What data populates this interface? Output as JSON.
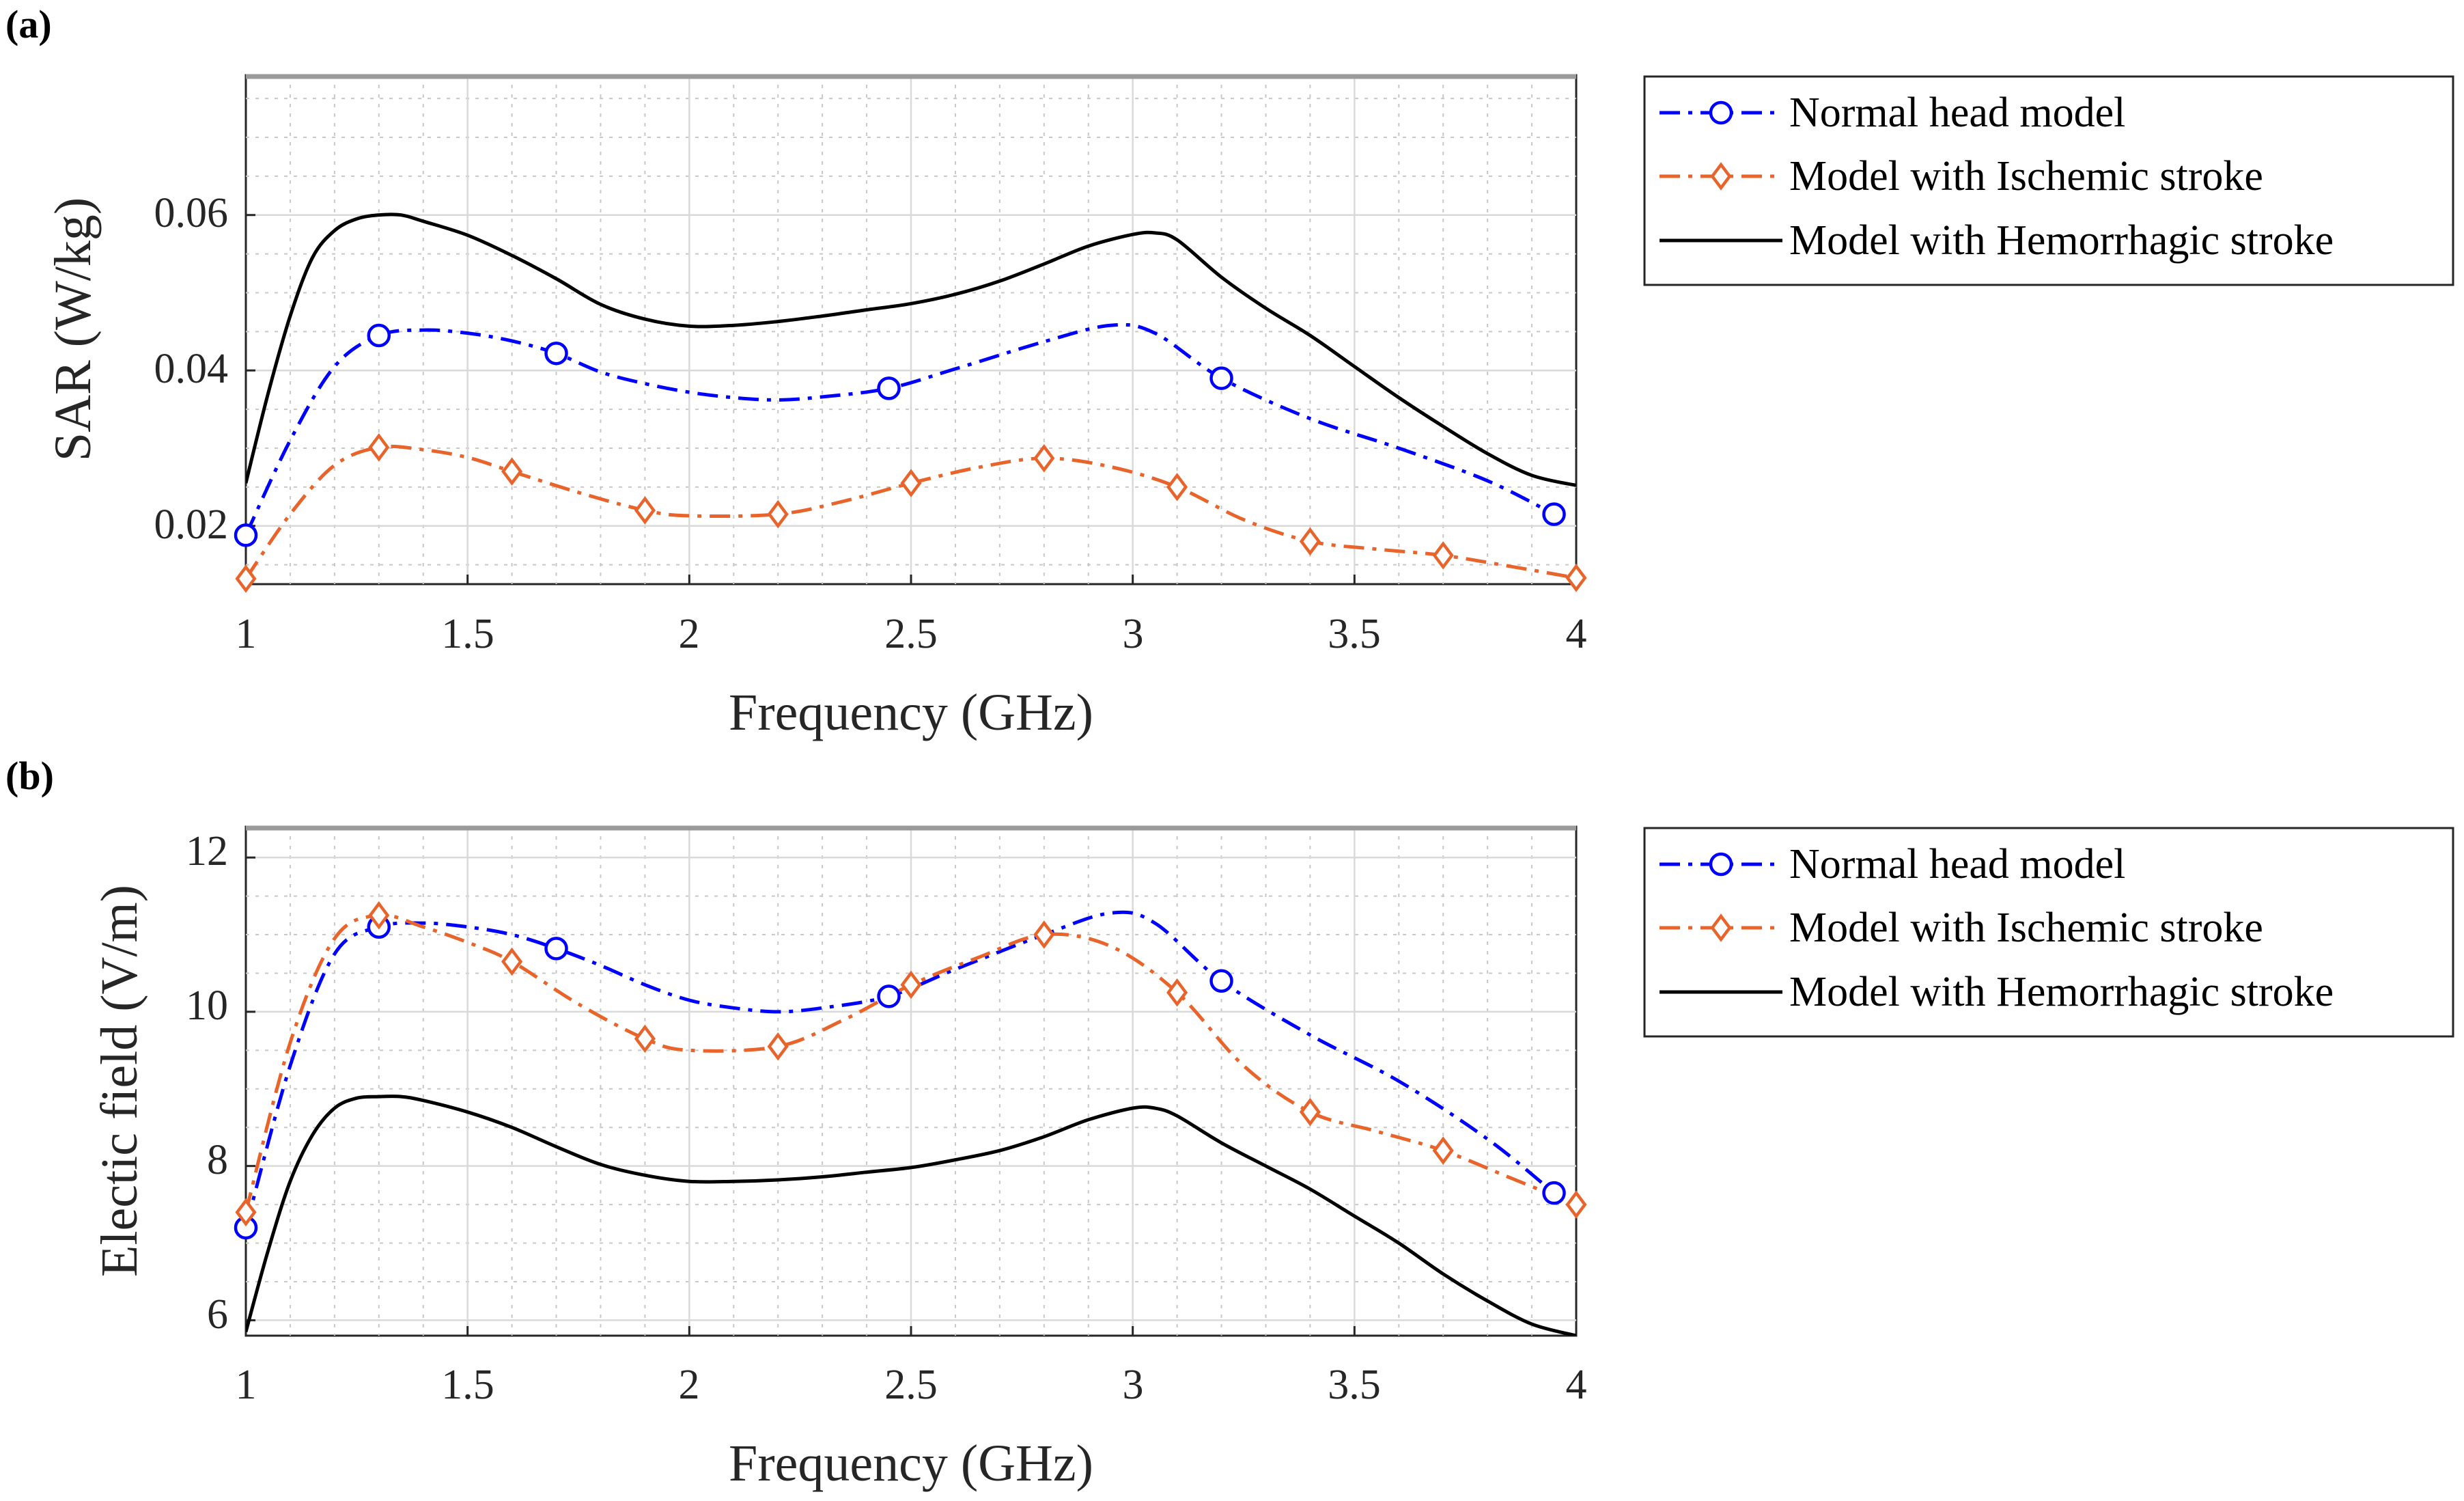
{
  "chart_data": [
    {
      "type": "line",
      "panel_label": "(a)",
      "xlabel": "Frequency (GHz)",
      "ylabel": "SAR (W/kg)",
      "xlim": [
        1,
        4
      ],
      "ylim": [
        0.0125,
        0.078
      ],
      "xticks": [
        "1",
        "1.5",
        "2",
        "2.5",
        "3",
        "3.5",
        "4"
      ],
      "yticks": [
        "0.02",
        "0.04",
        "0.06"
      ],
      "ytick_values": [
        0.02,
        0.04,
        0.06
      ],
      "grid": true,
      "minor_grid": true,
      "legend_position": "outside-right",
      "series": [
        {
          "name": "Normal head model",
          "color": "#0000ff",
          "line_style": "dash-dot",
          "marker": "circle",
          "x": [
            1.0,
            1.1,
            1.2,
            1.3,
            1.4,
            1.5,
            1.6,
            1.7,
            1.8,
            1.9,
            2.0,
            2.1,
            2.2,
            2.3,
            2.45,
            2.6,
            2.8,
            2.95,
            3.05,
            3.2,
            3.4,
            3.6,
            3.8,
            3.95
          ],
          "y": [
            0.0188,
            0.031,
            0.0405,
            0.0445,
            0.0452,
            0.0448,
            0.0438,
            0.0422,
            0.0398,
            0.0383,
            0.0372,
            0.0365,
            0.0362,
            0.0366,
            0.0377,
            0.0402,
            0.0437,
            0.0458,
            0.0448,
            0.039,
            0.0338,
            0.03,
            0.0258,
            0.0215
          ],
          "marker_x": [
            1.0,
            1.3,
            1.7,
            2.45,
            3.2,
            3.95
          ],
          "marker_y": [
            0.0188,
            0.0445,
            0.0422,
            0.0377,
            0.039,
            0.0215
          ]
        },
        {
          "name": "Model with Ischemic stroke",
          "color": "#e8642a",
          "line_style": "dash-dot",
          "marker": "diamond",
          "x": [
            1.0,
            1.1,
            1.2,
            1.3,
            1.4,
            1.5,
            1.6,
            1.75,
            1.9,
            2.0,
            2.2,
            2.35,
            2.5,
            2.65,
            2.8,
            2.95,
            3.1,
            3.25,
            3.4,
            3.55,
            3.7,
            3.85,
            4.0
          ],
          "y": [
            0.0132,
            0.0215,
            0.0278,
            0.0301,
            0.0298,
            0.0288,
            0.027,
            0.0243,
            0.022,
            0.0213,
            0.0215,
            0.0232,
            0.0255,
            0.0275,
            0.0287,
            0.0276,
            0.025,
            0.0208,
            0.018,
            0.017,
            0.0162,
            0.0148,
            0.0133
          ],
          "marker_x": [
            1.0,
            1.3,
            1.6,
            1.9,
            2.2,
            2.5,
            2.8,
            3.1,
            3.4,
            3.7,
            4.0
          ],
          "marker_y": [
            0.0132,
            0.0301,
            0.027,
            0.022,
            0.0215,
            0.0255,
            0.0287,
            0.025,
            0.018,
            0.0162,
            0.0133
          ]
        },
        {
          "name": "Model with Hemorrhagic stroke",
          "color": "#000000",
          "line_style": "solid",
          "marker": "none",
          "x": [
            1.0,
            1.05,
            1.1,
            1.15,
            1.2,
            1.25,
            1.3,
            1.35,
            1.4,
            1.5,
            1.6,
            1.7,
            1.8,
            1.9,
            2.0,
            2.1,
            2.2,
            2.3,
            2.4,
            2.5,
            2.6,
            2.7,
            2.8,
            2.9,
            3.0,
            3.05,
            3.1,
            3.2,
            3.3,
            3.4,
            3.5,
            3.6,
            3.7,
            3.8,
            3.9,
            4.0
          ],
          "y": [
            0.0255,
            0.037,
            0.047,
            0.0545,
            0.058,
            0.0595,
            0.06,
            0.06,
            0.0592,
            0.0574,
            0.0548,
            0.0518,
            0.0485,
            0.0466,
            0.0457,
            0.0458,
            0.0463,
            0.047,
            0.0478,
            0.0486,
            0.0498,
            0.0515,
            0.0537,
            0.056,
            0.0575,
            0.0577,
            0.0568,
            0.052,
            0.048,
            0.0445,
            0.0405,
            0.0365,
            0.0328,
            0.0293,
            0.0265,
            0.0252
          ]
        }
      ]
    },
    {
      "type": "line",
      "panel_label": "(b)",
      "xlabel": "Frequency (GHz)",
      "ylabel": "Electic field (V/m)",
      "xlim": [
        1,
        4
      ],
      "ylim": [
        5.8,
        12.4
      ],
      "xticks": [
        "1",
        "1.5",
        "2",
        "2.5",
        "3",
        "3.5",
        "4"
      ],
      "yticks": [
        "6",
        "8",
        "10",
        "12"
      ],
      "ytick_values": [
        6,
        8,
        10,
        12
      ],
      "grid": true,
      "minor_grid": true,
      "legend_position": "outside-right",
      "series": [
        {
          "name": "Normal head model",
          "color": "#0000ff",
          "line_style": "dash-dot",
          "marker": "circle",
          "x": [
            1.0,
            1.1,
            1.2,
            1.3,
            1.4,
            1.5,
            1.6,
            1.7,
            1.8,
            1.9,
            2.0,
            2.1,
            2.2,
            2.3,
            2.45,
            2.6,
            2.8,
            2.95,
            3.05,
            3.2,
            3.4,
            3.6,
            3.8,
            3.95
          ],
          "y": [
            7.2,
            9.3,
            10.75,
            11.1,
            11.15,
            11.1,
            11.0,
            10.82,
            10.6,
            10.35,
            10.15,
            10.05,
            10.0,
            10.05,
            10.2,
            10.55,
            11.0,
            11.28,
            11.15,
            10.4,
            9.7,
            9.1,
            8.35,
            7.65
          ],
          "marker_x": [
            1.0,
            1.3,
            1.7,
            2.45,
            3.2,
            3.95
          ],
          "marker_y": [
            7.2,
            11.1,
            10.82,
            10.2,
            10.4,
            7.65
          ]
        },
        {
          "name": "Model with Ischemic stroke",
          "color": "#e8642a",
          "line_style": "dash-dot",
          "marker": "diamond",
          "x": [
            1.0,
            1.1,
            1.2,
            1.3,
            1.4,
            1.5,
            1.6,
            1.75,
            1.9,
            2.0,
            2.2,
            2.35,
            2.5,
            2.65,
            2.8,
            2.95,
            3.1,
            3.25,
            3.4,
            3.55,
            3.7,
            3.85,
            4.0
          ],
          "y": [
            7.4,
            9.6,
            10.95,
            11.25,
            11.1,
            10.9,
            10.65,
            10.1,
            9.65,
            9.5,
            9.55,
            9.9,
            10.35,
            10.7,
            11.0,
            10.85,
            10.25,
            9.3,
            8.7,
            8.45,
            8.2,
            7.85,
            7.5
          ],
          "marker_x": [
            1.0,
            1.3,
            1.6,
            1.9,
            2.2,
            2.5,
            2.8,
            3.1,
            3.4,
            3.7,
            4.0
          ],
          "marker_y": [
            7.4,
            11.25,
            10.65,
            9.65,
            9.55,
            10.35,
            11.0,
            10.25,
            8.7,
            8.2,
            7.5
          ]
        },
        {
          "name": "Model with Hemorrhagic stroke",
          "color": "#000000",
          "line_style": "solid",
          "marker": "none",
          "x": [
            1.0,
            1.05,
            1.1,
            1.15,
            1.2,
            1.25,
            1.3,
            1.35,
            1.4,
            1.5,
            1.6,
            1.7,
            1.8,
            1.9,
            2.0,
            2.1,
            2.2,
            2.3,
            2.4,
            2.5,
            2.6,
            2.7,
            2.8,
            2.9,
            3.0,
            3.05,
            3.1,
            3.2,
            3.3,
            3.4,
            3.5,
            3.6,
            3.7,
            3.8,
            3.9,
            4.0
          ],
          "y": [
            5.85,
            6.9,
            7.8,
            8.4,
            8.75,
            8.88,
            8.9,
            8.9,
            8.85,
            8.7,
            8.5,
            8.25,
            8.02,
            7.88,
            7.8,
            7.8,
            7.82,
            7.86,
            7.92,
            7.98,
            8.08,
            8.2,
            8.38,
            8.6,
            8.75,
            8.75,
            8.65,
            8.3,
            8.0,
            7.7,
            7.35,
            7.0,
            6.6,
            6.25,
            5.95,
            5.8
          ]
        }
      ]
    }
  ]
}
